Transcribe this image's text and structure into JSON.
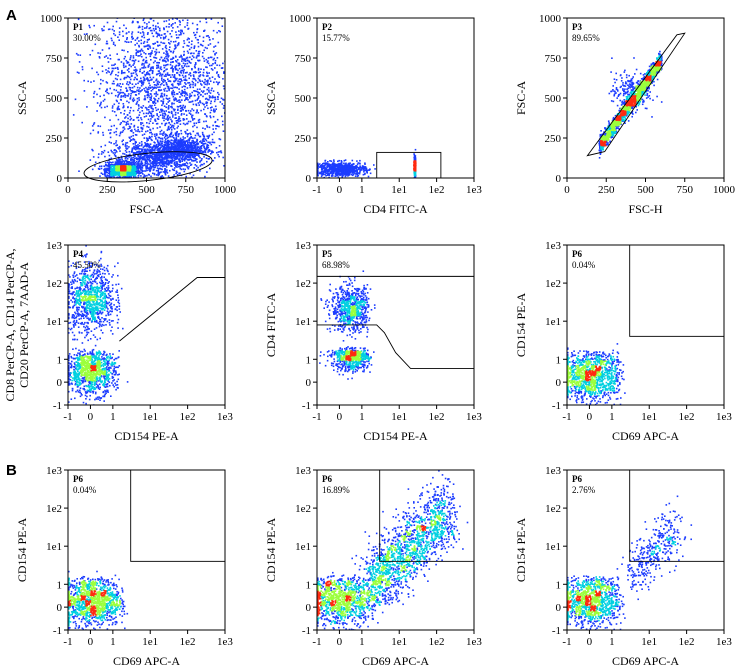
{
  "figure": {
    "sections": [
      {
        "id": "A",
        "label": "A"
      },
      {
        "id": "B",
        "label": "B"
      }
    ]
  },
  "colors": {
    "density_low": "#1c3cff",
    "density_mid": "#00d0e0",
    "density_high": "#9cff3c",
    "density_peak": "#ff2a10",
    "gate_line": "#000000"
  },
  "chart_data": [
    {
      "id": "p1",
      "type": "scatter",
      "section": "A",
      "gate_name": "P1",
      "gate_pct": "30.00%",
      "xlabel": "FSC-A",
      "ylabel": "SSC-A",
      "xscale": "linear",
      "yscale": "linear",
      "xlim": [
        0,
        1000
      ],
      "ylim": [
        0,
        1000
      ],
      "xticks": [
        {
          "v": 0,
          "t": "0"
        },
        {
          "v": 250,
          "t": "250"
        },
        {
          "v": 500,
          "t": "500"
        },
        {
          "v": 750,
          "t": "750"
        },
        {
          "v": 1000,
          "t": "1000"
        }
      ],
      "yticks": [
        {
          "v": 0,
          "t": "0"
        },
        {
          "v": 250,
          "t": "250"
        },
        {
          "v": 500,
          "t": "500"
        },
        {
          "v": 750,
          "t": "750"
        },
        {
          "v": 1000,
          "t": "1000"
        }
      ],
      "gate": {
        "shape": "ellipse",
        "cx": 510,
        "cy": 70,
        "rx": 410,
        "ry": 85
      },
      "populations": [
        {
          "cx": 340,
          "cy": 55,
          "sx": 50,
          "sy": 22,
          "n": 1100
        },
        {
          "cx": 720,
          "cy": 180,
          "sx": 85,
          "sy": 40,
          "n": 650
        },
        {
          "cx": 620,
          "cy": 580,
          "sx": 230,
          "sy": 270,
          "n": 2200
        },
        {
          "cx": 540,
          "cy": 130,
          "sx": 130,
          "sy": 60,
          "n": 900
        }
      ]
    },
    {
      "id": "p2",
      "type": "scatter",
      "section": "A",
      "gate_name": "P2",
      "gate_pct": "15.77%",
      "xlabel": "CD4 FITC-A",
      "ylabel": "SSC-A",
      "xscale": "biexp",
      "yscale": "linear",
      "xlim": [
        -1,
        1000
      ],
      "ylim": [
        0,
        1000
      ],
      "xticks": [
        {
          "v": -1,
          "t": "-1"
        },
        {
          "v": 0,
          "t": "0"
        },
        {
          "v": 1,
          "t": "1"
        },
        {
          "v": 10,
          "t": "1e1"
        },
        {
          "v": 100,
          "t": "1e2"
        },
        {
          "v": 1000,
          "t": "1e3"
        }
      ],
      "yticks": [
        {
          "v": 0,
          "t": "0"
        },
        {
          "v": 250,
          "t": "250"
        },
        {
          "v": 500,
          "t": "500"
        },
        {
          "v": 750,
          "t": "750"
        },
        {
          "v": 1000,
          "t": "1000"
        }
      ],
      "gate": {
        "shape": "rect",
        "x0": 2.5,
        "y0": 0,
        "x1": 130,
        "y1": 160
      },
      "populations": [
        {
          "cx": 0,
          "cy": 60,
          "sx": 0.6,
          "sy": 22,
          "n": 700
        },
        {
          "cx": 25,
          "cy": 75,
          "sx": 0.5,
          "sy": 25,
          "n": 650
        }
      ]
    },
    {
      "id": "p3",
      "type": "scatter",
      "section": "A",
      "gate_name": "P3",
      "gate_pct": "89.65%",
      "xlabel": "FSC-H",
      "ylabel": "FSC-A",
      "xscale": "linear",
      "yscale": "linear",
      "xlim": [
        0,
        1000
      ],
      "ylim": [
        0,
        1000
      ],
      "xticks": [
        {
          "v": 0,
          "t": "0"
        },
        {
          "v": 250,
          "t": "250"
        },
        {
          "v": 500,
          "t": "500"
        },
        {
          "v": 750,
          "t": "750"
        },
        {
          "v": 1000,
          "t": "1000"
        }
      ],
      "yticks": [
        {
          "v": 0,
          "t": "0"
        },
        {
          "v": 250,
          "t": "250"
        },
        {
          "v": 500,
          "t": "500"
        },
        {
          "v": 750,
          "t": "750"
        },
        {
          "v": 1000,
          "t": "1000"
        }
      ],
      "gate": {
        "shape": "poly",
        "points": [
          [
            130,
            140
          ],
          [
            700,
            895
          ],
          [
            750,
            905
          ],
          [
            240,
            165
          ]
        ]
      },
      "populations": [
        {
          "diag": true,
          "x0": 200,
          "x1": 600,
          "slope": 1.35,
          "b": -70,
          "spread": 28,
          "n": 1500
        },
        {
          "cx": 400,
          "cy": 540,
          "sx": 60,
          "sy": 60,
          "n": 250
        }
      ]
    },
    {
      "id": "p4",
      "type": "scatter",
      "section": "A",
      "gate_name": "P4",
      "gate_pct": "45.50%",
      "xlabel": "CD154 PE-A",
      "ylabel": "CD8 PerCP-A, CD14 PerCP-A, CD20 PerCP-A, 7AAD-A",
      "xscale": "biexp",
      "yscale": "biexp",
      "xlim": [
        -1,
        1000
      ],
      "ylim": [
        -1,
        1000
      ],
      "xticks": [
        {
          "v": -1,
          "t": "-1"
        },
        {
          "v": 0,
          "t": "0"
        },
        {
          "v": 1,
          "t": "1"
        },
        {
          "v": 10,
          "t": "1e1"
        },
        {
          "v": 100,
          "t": "1e2"
        },
        {
          "v": 1000,
          "t": "1e3"
        }
      ],
      "yticks": [
        {
          "v": -1,
          "t": "-1"
        },
        {
          "v": 0,
          "t": "0"
        },
        {
          "v": 1,
          "t": "1"
        },
        {
          "v": 10,
          "t": "1e1"
        },
        {
          "v": 100,
          "t": "1e2"
        },
        {
          "v": 1000,
          "t": "1e3"
        }
      ],
      "gate": {
        "shape": "poly",
        "points": [
          [
            -1,
            -1
          ],
          [
            -1,
            140
          ],
          [
            1.5,
            140
          ],
          [
            1.5,
            3
          ],
          [
            200,
            150
          ],
          [
            1000,
            150
          ],
          [
            1000,
            -1
          ]
        ],
        "draw": "open",
        "open_points": [
          [
            1.5,
            3
          ],
          [
            180,
            140
          ],
          [
            1000,
            140
          ]
        ]
      },
      "populations": [
        {
          "cx": 0,
          "cy": 40,
          "sx": 0.55,
          "sy": 0.45,
          "n": 900
        },
        {
          "cx": 0,
          "cy": 0.5,
          "sx": 0.55,
          "sy": 0.5,
          "n": 1000
        }
      ]
    },
    {
      "id": "p5",
      "type": "scatter",
      "section": "A",
      "gate_name": "P5",
      "gate_pct": "68.98%",
      "xlabel": "CD154 PE-A",
      "ylabel": "CD4 FITC-A",
      "xscale": "biexp",
      "yscale": "biexp",
      "xlim": [
        -1,
        1000
      ],
      "ylim": [
        -1,
        1000
      ],
      "xticks": [
        {
          "v": -1,
          "t": "-1"
        },
        {
          "v": 0,
          "t": "0"
        },
        {
          "v": 1,
          "t": "1"
        },
        {
          "v": 10,
          "t": "1e1"
        },
        {
          "v": 100,
          "t": "1e2"
        },
        {
          "v": 1000,
          "t": "1e3"
        }
      ],
      "yticks": [
        {
          "v": -1,
          "t": "-1"
        },
        {
          "v": 0,
          "t": "0"
        },
        {
          "v": 1,
          "t": "1"
        },
        {
          "v": 10,
          "t": "1e1"
        },
        {
          "v": 100,
          "t": "1e2"
        },
        {
          "v": 1000,
          "t": "1e3"
        }
      ],
      "gate": {
        "shape": "open",
        "open_points": [
          [
            -1,
            8
          ],
          [
            2.5,
            8
          ],
          [
            4,
            5
          ],
          [
            8,
            1.5
          ],
          [
            20,
            0.6
          ],
          [
            1000,
            0.6
          ]
        ],
        "top_line": 150
      },
      "populations": [
        {
          "cx": 0.5,
          "cy": 22,
          "sx": 0.45,
          "sy": 0.3,
          "n": 700
        },
        {
          "cx": 0.5,
          "cy": 1.2,
          "sx": 0.45,
          "sy": 0.35,
          "n": 600
        }
      ]
    },
    {
      "id": "p6a",
      "type": "scatter",
      "section": "A",
      "gate_name": "P6",
      "gate_pct": "0.04%",
      "xlabel": "CD69 APC-A",
      "ylabel": "CD154 PE-A",
      "xscale": "biexp",
      "yscale": "biexp",
      "xlim": [
        -1,
        1000
      ],
      "ylim": [
        -1,
        1000
      ],
      "xticks": [
        {
          "v": -1,
          "t": "-1"
        },
        {
          "v": 0,
          "t": "0"
        },
        {
          "v": 1,
          "t": "1"
        },
        {
          "v": 10,
          "t": "1e1"
        },
        {
          "v": 100,
          "t": "1e2"
        },
        {
          "v": 1000,
          "t": "1e3"
        }
      ],
      "yticks": [
        {
          "v": -1,
          "t": "-1"
        },
        {
          "v": 0,
          "t": "0"
        },
        {
          "v": 1,
          "t": "1"
        },
        {
          "v": 10,
          "t": "1e1"
        },
        {
          "v": 100,
          "t": "1e2"
        },
        {
          "v": 1000,
          "t": "1e3"
        }
      ],
      "gate": {
        "shape": "rect",
        "x0": 3,
        "y0": 4,
        "x1": 1000,
        "y1": 1000
      },
      "populations": [
        {
          "cx": 0,
          "cy": 0.3,
          "sx": 0.7,
          "sy": 0.55,
          "n": 1200
        }
      ]
    },
    {
      "id": "p6b",
      "type": "scatter",
      "section": "B",
      "gate_name": "P6",
      "gate_pct": "0.04%",
      "xlabel": "CD69 APC-A",
      "ylabel": "CD154 PE-A",
      "xscale": "biexp",
      "yscale": "biexp",
      "xlim": [
        -1,
        1000
      ],
      "ylim": [
        -1,
        1000
      ],
      "xticks": [
        {
          "v": -1,
          "t": "-1"
        },
        {
          "v": 0,
          "t": "0"
        },
        {
          "v": 1,
          "t": "1"
        },
        {
          "v": 10,
          "t": "1e1"
        },
        {
          "v": 100,
          "t": "1e2"
        },
        {
          "v": 1000,
          "t": "1e3"
        }
      ],
      "yticks": [
        {
          "v": -1,
          "t": "-1"
        },
        {
          "v": 0,
          "t": "0"
        },
        {
          "v": 1,
          "t": "1"
        },
        {
          "v": 10,
          "t": "1e1"
        },
        {
          "v": 100,
          "t": "1e2"
        },
        {
          "v": 1000,
          "t": "1e3"
        }
      ],
      "gate": {
        "shape": "rect",
        "x0": 3,
        "y0": 4,
        "x1": 1000,
        "y1": 1000
      },
      "populations": [
        {
          "cx": 0,
          "cy": 0.3,
          "sx": 0.7,
          "sy": 0.55,
          "n": 1200
        }
      ]
    },
    {
      "id": "p6c",
      "type": "scatter",
      "section": "B",
      "gate_name": "P6",
      "gate_pct": "16.89%",
      "xlabel": "CD69 APC-A",
      "ylabel": "CD154 PE-A",
      "xscale": "biexp",
      "yscale": "biexp",
      "xlim": [
        -1,
        1000
      ],
      "ylim": [
        -1,
        1000
      ],
      "xticks": [
        {
          "v": -1,
          "t": "-1"
        },
        {
          "v": 0,
          "t": "0"
        },
        {
          "v": 1,
          "t": "1"
        },
        {
          "v": 10,
          "t": "1e1"
        },
        {
          "v": 100,
          "t": "1e2"
        },
        {
          "v": 1000,
          "t": "1e3"
        }
      ],
      "yticks": [
        {
          "v": -1,
          "t": "-1"
        },
        {
          "v": 0,
          "t": "0"
        },
        {
          "v": 1,
          "t": "1"
        },
        {
          "v": 10,
          "t": "1e1"
        },
        {
          "v": 100,
          "t": "1e2"
        },
        {
          "v": 1000,
          "t": "1e3"
        }
      ],
      "gate": {
        "shape": "rect",
        "x0": 3,
        "y0": 4,
        "x1": 1000,
        "y1": 1000
      },
      "populations": [
        {
          "cx": 0,
          "cy": 0.3,
          "sx": 0.8,
          "sy": 0.55,
          "n": 1100
        },
        {
          "diag": true,
          "logspace": true,
          "x0": 1.5,
          "x1": 200,
          "spread": 0.45,
          "n": 1600
        }
      ]
    },
    {
      "id": "p6d",
      "type": "scatter",
      "section": "B",
      "gate_name": "P6",
      "gate_pct": "2.76%",
      "xlabel": "CD69 APC-A",
      "ylabel": "CD154 PE-A",
      "xscale": "biexp",
      "yscale": "biexp",
      "xlim": [
        -1,
        1000
      ],
      "ylim": [
        -1,
        1000
      ],
      "xticks": [
        {
          "v": -1,
          "t": "-1"
        },
        {
          "v": 0,
          "t": "0"
        },
        {
          "v": 1,
          "t": "1"
        },
        {
          "v": 10,
          "t": "1e1"
        },
        {
          "v": 100,
          "t": "1e2"
        },
        {
          "v": 1000,
          "t": "1e3"
        }
      ],
      "yticks": [
        {
          "v": -1,
          "t": "-1"
        },
        {
          "v": 0,
          "t": "0"
        },
        {
          "v": 1,
          "t": "1"
        },
        {
          "v": 10,
          "t": "1e1"
        },
        {
          "v": 100,
          "t": "1e2"
        },
        {
          "v": 1000,
          "t": "1e3"
        }
      ],
      "gate": {
        "shape": "rect",
        "x0": 3,
        "y0": 4,
        "x1": 1000,
        "y1": 1000
      },
      "populations": [
        {
          "cx": 0,
          "cy": 0.3,
          "sx": 0.7,
          "sy": 0.55,
          "n": 1100
        },
        {
          "diag": true,
          "logspace": true,
          "x0": 3,
          "x1": 60,
          "spread": 0.35,
          "n": 350
        }
      ]
    }
  ]
}
